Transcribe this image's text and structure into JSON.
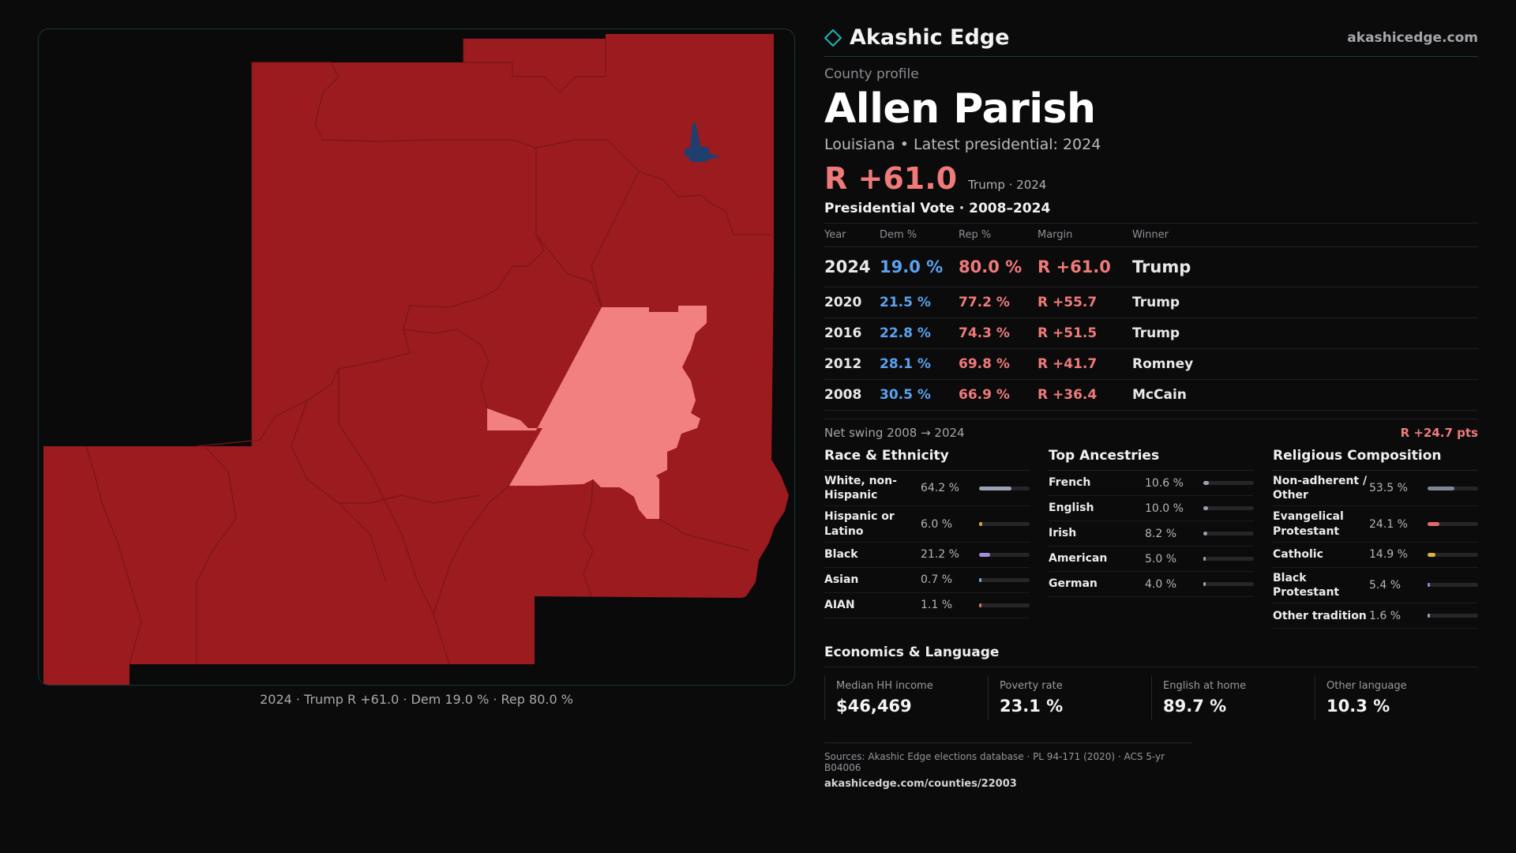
{
  "brand": {
    "name": "Akashic Edge",
    "site": "akashicedge.com",
    "accent": "#1fb5b5"
  },
  "profile": {
    "eyebrow": "County profile",
    "title": "Allen Parish",
    "subtitle": "Louisiana • Latest presidential: 2024",
    "headline_margin": "R +61.0",
    "headline_note": "Trump · 2024"
  },
  "votes": {
    "heading": "Presidential Vote · 2008–2024",
    "columns": [
      "Year",
      "Dem %",
      "Rep %",
      "Margin",
      "Winner"
    ],
    "rows": [
      {
        "year": "2024",
        "dem": "19.0 %",
        "rep": "80.0 %",
        "margin": "R +61.0",
        "winner": "Trump"
      },
      {
        "year": "2020",
        "dem": "21.5 %",
        "rep": "77.2 %",
        "margin": "R +55.7",
        "winner": "Trump"
      },
      {
        "year": "2016",
        "dem": "22.8 %",
        "rep": "74.3 %",
        "margin": "R +51.5",
        "winner": "Trump"
      },
      {
        "year": "2012",
        "dem": "28.1 %",
        "rep": "69.8 %",
        "margin": "R +41.7",
        "winner": "Romney"
      },
      {
        "year": "2008",
        "dem": "30.5 %",
        "rep": "66.9 %",
        "margin": "R +36.4",
        "winner": "McCain"
      }
    ]
  },
  "swing": {
    "label": "Net swing 2008 → 2024",
    "value": "R +24.7 pts"
  },
  "race": {
    "heading": "Race & Ethnicity",
    "rows": [
      {
        "label": "White, non-Hispanic",
        "value": "64.2 %",
        "pct": 64.2,
        "color": "#9aa3b5"
      },
      {
        "label": "Hispanic or Latino",
        "value": "6.0 %",
        "pct": 6.0,
        "color": "#e0a03a"
      },
      {
        "label": "Black",
        "value": "21.2 %",
        "pct": 21.2,
        "color": "#a78be0"
      },
      {
        "label": "Asian",
        "value": "0.7 %",
        "pct": 0.7,
        "color": "#6fb0e0"
      },
      {
        "label": "AIAN",
        "value": "1.1 %",
        "pct": 1.1,
        "color": "#e07a4a"
      }
    ]
  },
  "ancestry": {
    "heading": "Top Ancestries",
    "rows": [
      {
        "label": "French",
        "value": "10.6 %",
        "pct": 10.6,
        "color": "#9aa3b5"
      },
      {
        "label": "English",
        "value": "10.0 %",
        "pct": 10.0,
        "color": "#9aa3b5"
      },
      {
        "label": "Irish",
        "value": "8.2 %",
        "pct": 8.2,
        "color": "#9aa3b5"
      },
      {
        "label": "American",
        "value": "5.0 %",
        "pct": 5.0,
        "color": "#9aa3b5"
      },
      {
        "label": "German",
        "value": "4.0 %",
        "pct": 4.0,
        "color": "#9aa3b5"
      }
    ]
  },
  "religion": {
    "heading": "Religious Composition",
    "rows": [
      {
        "label": "Non-adherent / Other",
        "value": "53.5 %",
        "pct": 53.5,
        "color": "#7f8796"
      },
      {
        "label": "Evangelical Protestant",
        "value": "24.1 %",
        "pct": 24.1,
        "color": "#e06a6a"
      },
      {
        "label": "Catholic",
        "value": "14.9 %",
        "pct": 14.9,
        "color": "#e0b43a"
      },
      {
        "label": "Black Protestant",
        "value": "5.4 %",
        "pct": 5.4,
        "color": "#8a8ae0"
      },
      {
        "label": "Other tradition",
        "value": "1.6 %",
        "pct": 1.6,
        "color": "#9aa3b5"
      }
    ]
  },
  "economics": {
    "heading": "Economics & Language",
    "items": [
      {
        "label": "Median HH income",
        "value": "$46,469"
      },
      {
        "label": "Poverty rate",
        "value": "23.1 %"
      },
      {
        "label": "English at home",
        "value": "89.7 %"
      },
      {
        "label": "Other language",
        "value": "10.3 %"
      }
    ]
  },
  "sources": {
    "line": "Sources: Akashic Edge elections database · PL 94-171 (2020) · ACS 5-yr B04006",
    "url": "akashicedge.com/counties/22003"
  },
  "map": {
    "caption": "2024 · Trump R +61.0 · Dem 19.0 % · Rep 80.0 %",
    "colors": {
      "strong_rep": "#9b1b1f",
      "lean_rep": "#f28080",
      "dem": "#1f3f6e",
      "border": "#7a1518"
    }
  }
}
